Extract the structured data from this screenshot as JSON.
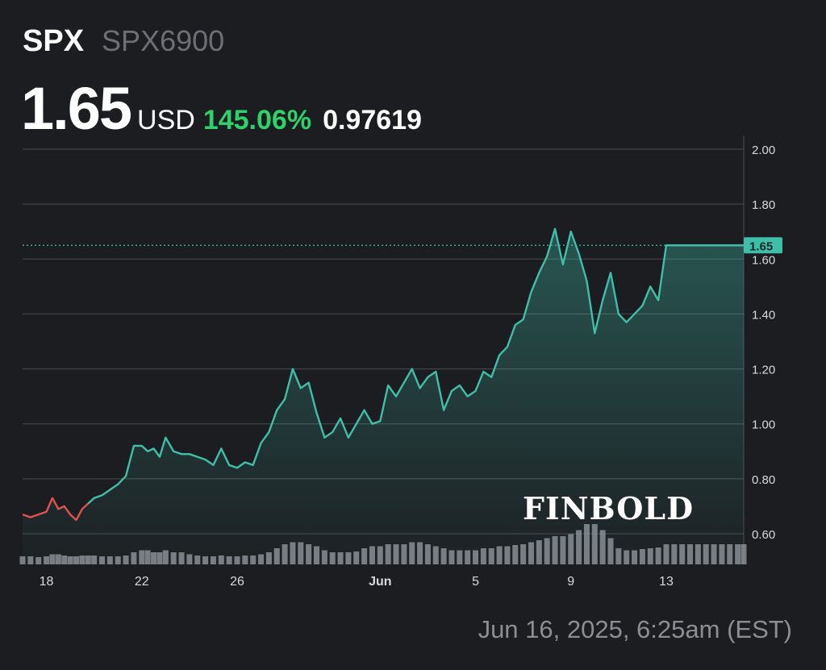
{
  "header": {
    "ticker": "SPX",
    "name": "SPX6900",
    "price": "1.65",
    "currency": "USD",
    "change_pct": "145.06%",
    "change_abs": "0.97619"
  },
  "footer": {
    "timestamp": "Jun 16, 2025, 6:25am (EST)"
  },
  "watermark": {
    "text": "FINBOLD"
  },
  "colors": {
    "background": "#1c1d21",
    "line_up": "#3fbfa9",
    "line_down": "#e0524f",
    "positive_change": "#2fd16a",
    "grid": "#4b4d53",
    "volume": "#9a9ca3",
    "label_bg": "#3fbfa9"
  },
  "chart_data": {
    "type": "area",
    "x_tick_labels": [
      "18",
      "22",
      "26",
      "Jun",
      "5",
      "9",
      "13"
    ],
    "x_ticks": [
      "2025-05-18",
      "2025-05-22",
      "2025-05-26",
      "2025-06-01",
      "2025-06-05",
      "2025-06-09",
      "2025-06-13"
    ],
    "y_tick_labels": [
      "2.00",
      "1.80",
      "1.60",
      "1.40",
      "1.20",
      "1.00",
      "0.80",
      "0.60"
    ],
    "y_ticks": [
      2.0,
      1.8,
      1.6,
      1.4,
      1.2,
      1.0,
      0.8,
      0.6
    ],
    "ylim": [
      0.55,
      2.0
    ],
    "xlim": [
      "2025-05-17",
      "2025-06-16"
    ],
    "last_price": 1.65,
    "last_price_label": "1.65",
    "grid": true,
    "series": [
      {
        "x": [
          "2025-05-17",
          "2025-05-17",
          "2025-05-17",
          "2025-05-18",
          "2025-05-18",
          "2025-05-18",
          "2025-05-18",
          "2025-05-19",
          "2025-05-19",
          "2025-05-19",
          "2025-05-19",
          "2025-05-20",
          "2025-05-20",
          "2025-05-20",
          "2025-05-21",
          "2025-05-21",
          "2025-05-21",
          "2025-05-22",
          "2025-05-22",
          "2025-05-22",
          "2025-05-22",
          "2025-05-23",
          "2025-05-23",
          "2025-05-23",
          "2025-05-24",
          "2025-05-24",
          "2025-05-24",
          "2025-05-25",
          "2025-05-25",
          "2025-05-25",
          "2025-05-26",
          "2025-05-26",
          "2025-05-26",
          "2025-05-27",
          "2025-05-27",
          "2025-05-27",
          "2025-05-28",
          "2025-05-28",
          "2025-05-28",
          "2025-05-29",
          "2025-05-29",
          "2025-05-29",
          "2025-05-30",
          "2025-05-30",
          "2025-05-30",
          "2025-05-31",
          "2025-05-31",
          "2025-05-31",
          "2025-06-01",
          "2025-06-01",
          "2025-06-01",
          "2025-06-02",
          "2025-06-02",
          "2025-06-02",
          "2025-06-03",
          "2025-06-03",
          "2025-06-03",
          "2025-06-04",
          "2025-06-04",
          "2025-06-04",
          "2025-06-05",
          "2025-06-05",
          "2025-06-05",
          "2025-06-06",
          "2025-06-06",
          "2025-06-06",
          "2025-06-07",
          "2025-06-07",
          "2025-06-07",
          "2025-06-08",
          "2025-06-08",
          "2025-06-08",
          "2025-06-09",
          "2025-06-09",
          "2025-06-09",
          "2025-06-10",
          "2025-06-10",
          "2025-06-10",
          "2025-06-11",
          "2025-06-11",
          "2025-06-11",
          "2025-06-12",
          "2025-06-12",
          "2025-06-12",
          "2025-06-13",
          "2025-06-13",
          "2025-06-13",
          "2025-06-14",
          "2025-06-14",
          "2025-06-14",
          "2025-06-15",
          "2025-06-15",
          "2025-06-15",
          "2025-06-16",
          "2025-06-16"
        ],
        "hour": [
          0,
          8,
          16,
          0,
          6,
          12,
          18,
          0,
          6,
          12,
          18,
          0,
          8,
          16,
          0,
          8,
          16,
          0,
          6,
          12,
          18,
          0,
          8,
          16,
          0,
          8,
          16,
          0,
          8,
          16,
          0,
          8,
          16,
          0,
          8,
          16,
          0,
          8,
          16,
          0,
          8,
          16,
          0,
          8,
          16,
          0,
          8,
          16,
          0,
          8,
          16,
          0,
          8,
          16,
          0,
          8,
          16,
          0,
          8,
          16,
          0,
          8,
          16,
          0,
          8,
          16,
          0,
          8,
          16,
          0,
          8,
          16,
          0,
          8,
          16,
          0,
          8,
          16,
          0,
          8,
          16,
          0,
          8,
          16,
          0,
          8,
          16,
          0,
          8,
          16,
          0,
          8,
          16,
          0,
          6
        ],
        "y": [
          0.67,
          0.66,
          0.67,
          0.68,
          0.73,
          0.69,
          0.7,
          0.67,
          0.65,
          0.69,
          0.71,
          0.73,
          0.74,
          0.76,
          0.78,
          0.81,
          0.92,
          0.92,
          0.9,
          0.91,
          0.88,
          0.95,
          0.9,
          0.89,
          0.89,
          0.88,
          0.87,
          0.85,
          0.91,
          0.85,
          0.84,
          0.86,
          0.85,
          0.93,
          0.97,
          1.05,
          1.09,
          1.2,
          1.13,
          1.15,
          1.04,
          0.95,
          0.97,
          1.02,
          0.95,
          1.0,
          1.05,
          1.0,
          1.01,
          1.14,
          1.1,
          1.15,
          1.2,
          1.13,
          1.17,
          1.19,
          1.05,
          1.12,
          1.14,
          1.1,
          1.12,
          1.19,
          1.17,
          1.25,
          1.28,
          1.36,
          1.38,
          1.48,
          1.55,
          1.61,
          1.71,
          1.58,
          1.7,
          1.62,
          1.52,
          1.33,
          1.45,
          1.55,
          1.4,
          1.37,
          1.4,
          1.43,
          1.5,
          1.45,
          1.65,
          1.65,
          1.65,
          1.65,
          1.65,
          1.65,
          1.65,
          1.65,
          1.65,
          1.65,
          1.65
        ],
        "values": [
          0.67,
          0.66,
          0.67,
          0.68,
          0.73,
          0.69,
          0.7,
          0.67,
          0.65,
          0.69,
          0.71,
          0.73,
          0.74,
          0.76,
          0.78,
          0.81,
          0.92,
          0.92,
          0.9,
          0.91,
          0.88,
          0.95,
          0.9,
          0.89,
          0.89,
          0.88,
          0.87,
          0.85,
          0.91,
          0.85,
          0.84,
          0.86,
          0.85,
          0.93,
          0.97,
          1.05,
          1.09,
          1.2,
          1.13,
          1.15,
          1.04,
          0.95,
          0.97,
          1.02,
          0.95,
          1.0,
          1.05,
          1.0,
          1.01,
          1.14,
          1.1,
          1.15,
          1.2,
          1.13,
          1.17,
          1.19,
          1.05,
          1.12,
          1.14,
          1.1,
          1.12,
          1.19,
          1.17,
          1.25,
          1.28,
          1.36,
          1.38,
          1.48,
          1.55,
          1.61,
          1.71,
          1.58,
          1.7,
          1.62,
          1.52,
          1.33,
          1.45,
          1.55,
          1.4,
          1.37,
          1.4,
          1.43,
          1.5,
          1.45,
          1.65,
          1.65,
          1.65,
          1.65,
          1.65,
          1.65,
          1.65,
          1.65,
          1.65,
          1.65,
          1.65
        ]
      }
    ],
    "volume": [
      0.2,
      0.2,
      0.18,
      0.2,
      0.25,
      0.25,
      0.22,
      0.2,
      0.2,
      0.22,
      0.22,
      0.22,
      0.2,
      0.2,
      0.2,
      0.22,
      0.3,
      0.35,
      0.35,
      0.3,
      0.3,
      0.35,
      0.3,
      0.3,
      0.25,
      0.22,
      0.2,
      0.2,
      0.22,
      0.2,
      0.2,
      0.22,
      0.22,
      0.25,
      0.3,
      0.4,
      0.5,
      0.55,
      0.55,
      0.5,
      0.45,
      0.35,
      0.3,
      0.3,
      0.3,
      0.32,
      0.4,
      0.45,
      0.45,
      0.5,
      0.5,
      0.5,
      0.55,
      0.55,
      0.5,
      0.45,
      0.4,
      0.35,
      0.35,
      0.35,
      0.35,
      0.4,
      0.4,
      0.45,
      0.45,
      0.48,
      0.5,
      0.55,
      0.6,
      0.65,
      0.7,
      0.7,
      0.75,
      0.85,
      1.0,
      1.0,
      0.85,
      0.65,
      0.4,
      0.35,
      0.35,
      0.38,
      0.4,
      0.42,
      0.5,
      0.5,
      0.5,
      0.5,
      0.5,
      0.5,
      0.5,
      0.5,
      0.5,
      0.5,
      0.5
    ]
  }
}
